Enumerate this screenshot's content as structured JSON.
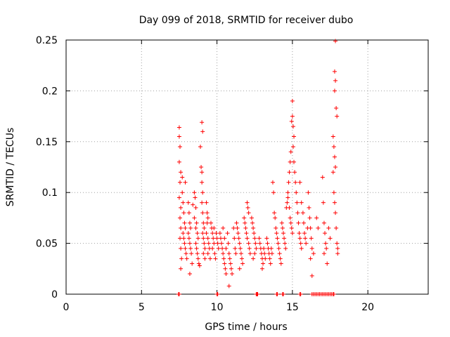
{
  "chart_data": {
    "type": "scatter",
    "title": "Day 099 of 2018, SRMTID for receiver dubo",
    "xlabel": "GPS time / hours",
    "ylabel": "SRMTID / TECUs",
    "xlim": [
      0,
      24
    ],
    "ylim": [
      0,
      0.25
    ],
    "grid": true,
    "marker": "plus",
    "series_color": "#ff0000",
    "x_ticks": [
      {
        "value": 0,
        "label": "0"
      },
      {
        "value": 5,
        "label": "5"
      },
      {
        "value": 10,
        "label": "10"
      },
      {
        "value": 15,
        "label": "15"
      },
      {
        "value": 20,
        "label": "20"
      }
    ],
    "y_ticks": [
      {
        "value": 0,
        "label": "0"
      },
      {
        "value": 0.05,
        "label": "0.05"
      },
      {
        "value": 0.1,
        "label": "0.1"
      },
      {
        "value": 0.15,
        "label": "0.15"
      },
      {
        "value": 0.2,
        "label": "0.2"
      },
      {
        "value": 0.25,
        "label": "0.25"
      }
    ],
    "series": [
      {
        "name": "SRMTID",
        "points": [
          [
            7.5,
            0.164
          ],
          [
            7.5,
            0.155
          ],
          [
            7.55,
            0.145
          ],
          [
            7.5,
            0.13
          ],
          [
            7.6,
            0.12
          ],
          [
            7.55,
            0.11
          ],
          [
            7.5,
            0.095
          ],
          [
            7.6,
            0.085
          ],
          [
            7.55,
            0.075
          ],
          [
            7.6,
            0.065
          ],
          [
            7.55,
            0.055
          ],
          [
            7.6,
            0.045
          ],
          [
            7.65,
            0.035
          ],
          [
            7.6,
            0.025
          ],
          [
            7.7,
            0.1
          ],
          [
            7.75,
            0.09
          ],
          [
            7.8,
            0.08
          ],
          [
            7.85,
            0.07
          ],
          [
            7.9,
            0.065
          ],
          [
            7.75,
            0.06
          ],
          [
            7.8,
            0.055
          ],
          [
            7.85,
            0.05
          ],
          [
            7.9,
            0.045
          ],
          [
            7.95,
            0.04
          ],
          [
            8.0,
            0.035
          ],
          [
            7.7,
            0.115
          ],
          [
            7.9,
            0.11
          ],
          [
            8.1,
            0.09
          ],
          [
            8.15,
            0.08
          ],
          [
            8.2,
            0.07
          ],
          [
            8.25,
            0.065
          ],
          [
            8.1,
            0.06
          ],
          [
            8.15,
            0.055
          ],
          [
            8.2,
            0.05
          ],
          [
            8.25,
            0.045
          ],
          [
            8.3,
            0.04
          ],
          [
            8.35,
            0.03
          ],
          [
            8.2,
            0.02
          ],
          [
            8.4,
            0.088
          ],
          [
            8.5,
            0.075
          ],
          [
            8.5,
            0.1
          ],
          [
            8.55,
            0.095
          ],
          [
            8.6,
            0.085
          ],
          [
            8.65,
            0.07
          ],
          [
            8.6,
            0.065
          ],
          [
            8.7,
            0.06
          ],
          [
            8.75,
            0.055
          ],
          [
            8.6,
            0.05
          ],
          [
            8.65,
            0.045
          ],
          [
            8.7,
            0.04
          ],
          [
            8.75,
            0.035
          ],
          [
            8.8,
            0.03
          ],
          [
            8.85,
            0.028
          ],
          [
            8.9,
            0.145
          ],
          [
            8.95,
            0.125
          ],
          [
            9.0,
            0.12
          ],
          [
            9.0,
            0.11
          ],
          [
            9.05,
            0.1
          ],
          [
            9.0,
            0.09
          ],
          [
            9.05,
            0.08
          ],
          [
            9.1,
            0.07
          ],
          [
            9.15,
            0.065
          ],
          [
            9.05,
            0.06
          ],
          [
            9.1,
            0.055
          ],
          [
            9.15,
            0.05
          ],
          [
            9.2,
            0.045
          ],
          [
            9.1,
            0.04
          ],
          [
            9.2,
            0.035
          ],
          [
            9.0,
            0.169
          ],
          [
            9.05,
            0.16
          ],
          [
            9.3,
            0.09
          ],
          [
            9.35,
            0.08
          ],
          [
            9.4,
            0.075
          ],
          [
            9.35,
            0.07
          ],
          [
            9.3,
            0.06
          ],
          [
            9.4,
            0.055
          ],
          [
            9.45,
            0.05
          ],
          [
            9.5,
            0.045
          ],
          [
            9.4,
            0.04
          ],
          [
            9.55,
            0.035
          ],
          [
            9.6,
            0.07
          ],
          [
            9.65,
            0.065
          ],
          [
            9.7,
            0.06
          ],
          [
            9.75,
            0.055
          ],
          [
            9.8,
            0.05
          ],
          [
            9.7,
            0.045
          ],
          [
            9.85,
            0.04
          ],
          [
            9.9,
            0.035
          ],
          [
            9.8,
            0.065
          ],
          [
            9.95,
            0.06
          ],
          [
            10.0,
            0.055
          ],
          [
            10.05,
            0.05
          ],
          [
            10.1,
            0.045
          ],
          [
            10.2,
            0.06
          ],
          [
            10.25,
            0.055
          ],
          [
            10.3,
            0.05
          ],
          [
            10.35,
            0.045
          ],
          [
            10.4,
            0.04
          ],
          [
            10.45,
            0.035
          ],
          [
            10.5,
            0.03
          ],
          [
            10.55,
            0.025
          ],
          [
            10.6,
            0.02
          ],
          [
            10.4,
            0.065
          ],
          [
            10.5,
            0.055
          ],
          [
            10.6,
            0.045
          ],
          [
            10.7,
            0.06
          ],
          [
            10.75,
            0.05
          ],
          [
            10.8,
            0.04
          ],
          [
            10.85,
            0.035
          ],
          [
            10.9,
            0.03
          ],
          [
            10.95,
            0.025
          ],
          [
            11.0,
            0.02
          ],
          [
            10.8,
            0.008
          ],
          [
            11.1,
            0.065
          ],
          [
            11.15,
            0.055
          ],
          [
            11.2,
            0.045
          ],
          [
            11.25,
            0.04
          ],
          [
            11.3,
            0.07
          ],
          [
            11.35,
            0.065
          ],
          [
            11.4,
            0.06
          ],
          [
            11.45,
            0.055
          ],
          [
            11.5,
            0.05
          ],
          [
            11.55,
            0.045
          ],
          [
            11.6,
            0.04
          ],
          [
            11.65,
            0.035
          ],
          [
            11.7,
            0.03
          ],
          [
            11.5,
            0.025
          ],
          [
            11.8,
            0.075
          ],
          [
            11.85,
            0.07
          ],
          [
            11.9,
            0.065
          ],
          [
            11.95,
            0.06
          ],
          [
            12.0,
            0.09
          ],
          [
            12.05,
            0.085
          ],
          [
            12.1,
            0.08
          ],
          [
            12.0,
            0.055
          ],
          [
            12.1,
            0.05
          ],
          [
            12.15,
            0.045
          ],
          [
            12.2,
            0.04
          ],
          [
            12.3,
            0.075
          ],
          [
            12.35,
            0.07
          ],
          [
            12.4,
            0.065
          ],
          [
            12.45,
            0.06
          ],
          [
            12.5,
            0.055
          ],
          [
            12.55,
            0.05
          ],
          [
            12.6,
            0.045
          ],
          [
            12.5,
            0.04
          ],
          [
            12.4,
            0.035
          ],
          [
            12.8,
            0.055
          ],
          [
            12.85,
            0.05
          ],
          [
            12.9,
            0.045
          ],
          [
            12.95,
            0.04
          ],
          [
            13.0,
            0.035
          ],
          [
            13.05,
            0.03
          ],
          [
            13.0,
            0.025
          ],
          [
            13.1,
            0.045
          ],
          [
            13.15,
            0.04
          ],
          [
            13.2,
            0.035
          ],
          [
            13.3,
            0.055
          ],
          [
            13.35,
            0.05
          ],
          [
            13.4,
            0.045
          ],
          [
            13.45,
            0.04
          ],
          [
            13.5,
            0.035
          ],
          [
            13.55,
            0.03
          ],
          [
            13.6,
            0.045
          ],
          [
            13.65,
            0.04
          ],
          [
            13.7,
            0.11
          ],
          [
            13.75,
            0.1
          ],
          [
            13.8,
            0.08
          ],
          [
            13.85,
            0.075
          ],
          [
            13.9,
            0.065
          ],
          [
            13.95,
            0.06
          ],
          [
            14.0,
            0.055
          ],
          [
            14.05,
            0.05
          ],
          [
            14.1,
            0.045
          ],
          [
            14.15,
            0.04
          ],
          [
            14.2,
            0.035
          ],
          [
            14.25,
            0.03
          ],
          [
            14.3,
            0.07
          ],
          [
            14.35,
            0.065
          ],
          [
            14.4,
            0.06
          ],
          [
            14.45,
            0.055
          ],
          [
            14.5,
            0.05
          ],
          [
            14.55,
            0.045
          ],
          [
            14.6,
            0.085
          ],
          [
            14.65,
            0.09
          ],
          [
            14.7,
            0.095
          ],
          [
            14.7,
            0.1
          ],
          [
            14.75,
            0.11
          ],
          [
            14.8,
            0.12
          ],
          [
            14.85,
            0.13
          ],
          [
            14.9,
            0.14
          ],
          [
            14.95,
            0.17
          ],
          [
            15.0,
            0.19
          ],
          [
            15.0,
            0.175
          ],
          [
            15.05,
            0.165
          ],
          [
            15.1,
            0.155
          ],
          [
            15.05,
            0.145
          ],
          [
            14.8,
            0.085
          ],
          [
            14.85,
            0.075
          ],
          [
            14.9,
            0.07
          ],
          [
            14.95,
            0.065
          ],
          [
            15.0,
            0.06
          ],
          [
            15.1,
            0.13
          ],
          [
            15.15,
            0.12
          ],
          [
            15.2,
            0.11
          ],
          [
            15.25,
            0.1
          ],
          [
            15.3,
            0.09
          ],
          [
            15.35,
            0.08
          ],
          [
            15.4,
            0.07
          ],
          [
            15.45,
            0.06
          ],
          [
            15.5,
            0.055
          ],
          [
            15.55,
            0.05
          ],
          [
            15.6,
            0.045
          ],
          [
            15.5,
            0.11
          ],
          [
            15.6,
            0.09
          ],
          [
            15.7,
            0.08
          ],
          [
            15.75,
            0.07
          ],
          [
            15.8,
            0.06
          ],
          [
            15.85,
            0.055
          ],
          [
            15.9,
            0.05
          ],
          [
            16.0,
            0.065
          ],
          [
            16.05,
            0.1
          ],
          [
            16.1,
            0.085
          ],
          [
            16.15,
            0.075
          ],
          [
            16.2,
            0.065
          ],
          [
            16.25,
            0.055
          ],
          [
            16.3,
            0.045
          ],
          [
            16.4,
            0.04
          ],
          [
            16.3,
            0.018
          ],
          [
            16.2,
            0.035
          ],
          [
            16.6,
            0.075
          ],
          [
            16.7,
            0.065
          ],
          [
            17.0,
            0.115
          ],
          [
            17.05,
            0.09
          ],
          [
            17.1,
            0.07
          ],
          [
            17.15,
            0.06
          ],
          [
            17.2,
            0.05
          ],
          [
            17.25,
            0.045
          ],
          [
            17.1,
            0.04
          ],
          [
            17.3,
            0.03
          ],
          [
            17.4,
            0.065
          ],
          [
            17.5,
            0.055
          ],
          [
            17.7,
            0.12
          ],
          [
            17.75,
            0.1
          ],
          [
            17.8,
            0.09
          ],
          [
            17.85,
            0.08
          ],
          [
            17.9,
            0.065
          ],
          [
            17.95,
            0.05
          ],
          [
            18.0,
            0.045
          ],
          [
            18.0,
            0.04
          ],
          [
            17.7,
            0.155
          ],
          [
            17.75,
            0.145
          ],
          [
            17.8,
            0.135
          ],
          [
            17.85,
            0.125
          ],
          [
            17.85,
            0.21
          ],
          [
            17.8,
            0.219
          ],
          [
            17.9,
            0.183
          ],
          [
            17.95,
            0.175
          ],
          [
            17.85,
            0.249
          ],
          [
            17.8,
            0.2
          ]
        ],
        "zero_points": [
          7.45,
          7.5,
          10.0,
          10.05,
          12.6,
          12.65,
          12.7,
          13.95,
          14.0,
          14.35,
          14.4,
          15.5,
          15.55,
          16.3,
          16.4,
          16.5,
          16.6,
          16.7,
          16.8,
          16.9,
          17.0,
          17.1,
          17.2,
          17.3,
          17.4,
          17.5,
          17.6,
          17.7,
          17.75
        ]
      }
    ]
  }
}
